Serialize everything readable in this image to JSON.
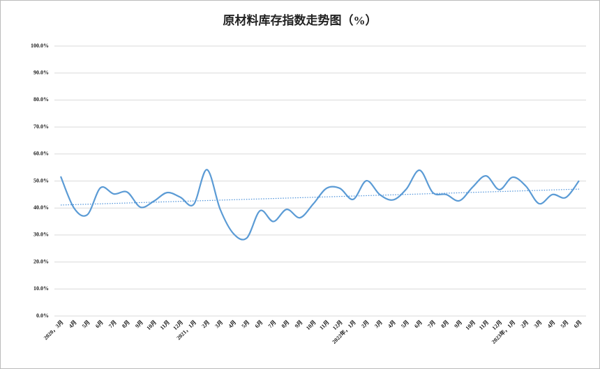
{
  "chart_data": {
    "type": "line",
    "title": "原材料库存指数走势图（%）",
    "categories": [
      "2020，3月",
      "4月",
      "5月",
      "6月",
      "7月",
      "8月",
      "9月",
      "10月",
      "11月",
      "12月",
      "2021，1月",
      "2月",
      "3月",
      "4月",
      "5月",
      "6月",
      "7月",
      "8月",
      "9月",
      "10月",
      "11月",
      "12月",
      "2022年，1月",
      "2月",
      "3月",
      "4月",
      "5月",
      "6月",
      "7月",
      "8月",
      "9月",
      "10月",
      "11月",
      "12月",
      "2023年，1月",
      "2月",
      "3月",
      "4月",
      "5月",
      "6月"
    ],
    "series": [
      {
        "color": "#5b9bd5",
        "values": [
          51.7,
          40.0,
          37.5,
          47.5,
          45.2,
          45.9,
          40.3,
          42.5,
          45.7,
          44.0,
          41.3,
          54.2,
          39.5,
          30.5,
          28.9,
          39.0,
          35.0,
          39.5,
          36.4,
          41.5,
          47.3,
          47.3,
          43.2,
          50.1,
          45.0,
          43.0,
          47.0,
          54.0,
          45.7,
          45.0,
          42.7,
          47.8,
          51.9,
          46.8,
          51.4,
          48.1,
          41.6,
          45.0,
          43.9,
          50.1
        ]
      }
    ],
    "trendline": {
      "values": [
        41.1,
        47.0
      ],
      "color": "#4a90d9",
      "style": "dotted"
    },
    "ylim": [
      0,
      100
    ],
    "yticks": [
      {
        "value": 0,
        "label": "0.0%"
      },
      {
        "value": 10,
        "label": "10.0%"
      },
      {
        "value": 20,
        "label": "20.0%"
      },
      {
        "value": 30,
        "label": "30.0%"
      },
      {
        "value": 40,
        "label": "40.0%"
      },
      {
        "value": 50,
        "label": "50.0%"
      },
      {
        "value": 60,
        "label": "60.0%"
      },
      {
        "value": 70,
        "label": "70.0%"
      },
      {
        "value": 80,
        "label": "80.0%"
      },
      {
        "value": 90,
        "label": "90.0%"
      },
      {
        "value": 100,
        "label": "100.0%"
      }
    ],
    "grid": true
  }
}
